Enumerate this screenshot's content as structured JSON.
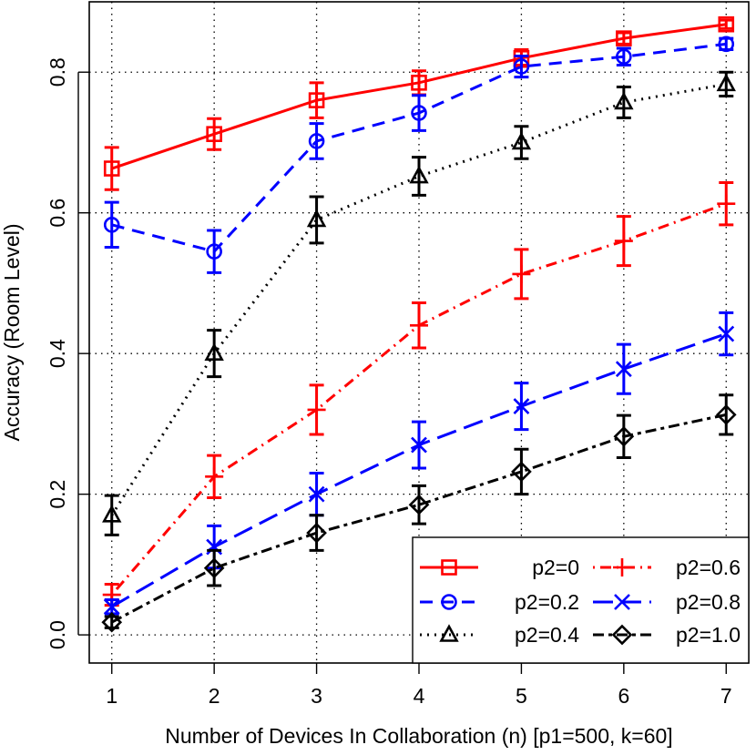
{
  "chart_data": {
    "type": "line",
    "title": "",
    "xlabel": "Number of Devices In Collaboration (n) [p1=500, k=60]",
    "ylabel": "Accuracy (Room Level)",
    "x": [
      1,
      2,
      3,
      4,
      5,
      6,
      7
    ],
    "x_ticks": [
      "1",
      "2",
      "3",
      "4",
      "5",
      "6",
      "7"
    ],
    "y_ticks": [
      "0.0",
      "0.2",
      "0.4",
      "0.6",
      "0.8"
    ],
    "y_tick_values": [
      0.0,
      0.2,
      0.4,
      0.6,
      0.8
    ],
    "xlim": [
      0.78,
      7.22
    ],
    "ylim": [
      -0.04,
      0.9
    ],
    "grid": true,
    "legend_position": "bottom-right",
    "series": [
      {
        "name": "p2=0",
        "color": "#ff0000",
        "marker": "square",
        "dash": "solid",
        "values": [
          0.663,
          0.712,
          0.76,
          0.785,
          0.82,
          0.848,
          0.868
        ],
        "errors": [
          0.03,
          0.022,
          0.025,
          0.017,
          0.012,
          0.008,
          0.006
        ]
      },
      {
        "name": "p2=0.2",
        "color": "#0000ff",
        "marker": "circle",
        "dash": "dashed",
        "values": [
          0.583,
          0.545,
          0.702,
          0.742,
          0.808,
          0.822,
          0.84
        ],
        "errors": [
          0.032,
          0.03,
          0.025,
          0.025,
          0.015,
          0.012,
          0.008
        ]
      },
      {
        "name": "p2=0.4",
        "color": "#000000",
        "marker": "triangle",
        "dash": "dotted",
        "values": [
          0.17,
          0.4,
          0.59,
          0.652,
          0.7,
          0.757,
          0.783
        ],
        "errors": [
          0.028,
          0.033,
          0.033,
          0.027,
          0.023,
          0.022,
          0.017
        ]
      },
      {
        "name": "p2=0.6",
        "color": "#ff0000",
        "marker": "plus",
        "dash": "dotdash",
        "values": [
          0.057,
          0.225,
          0.32,
          0.44,
          0.513,
          0.56,
          0.613
        ],
        "errors": [
          0.015,
          0.03,
          0.035,
          0.032,
          0.035,
          0.035,
          0.03
        ]
      },
      {
        "name": "p2=0.8",
        "color": "#0000ff",
        "marker": "cross",
        "dash": "longdash",
        "values": [
          0.04,
          0.125,
          0.2,
          0.27,
          0.325,
          0.378,
          0.428
        ],
        "errors": [
          0.01,
          0.03,
          0.03,
          0.033,
          0.033,
          0.035,
          0.03
        ]
      },
      {
        "name": "p2=1.0",
        "color": "#000000",
        "marker": "diamond",
        "dash": "twodash",
        "values": [
          0.018,
          0.095,
          0.145,
          0.185,
          0.232,
          0.282,
          0.313
        ],
        "errors": [
          0.008,
          0.025,
          0.025,
          0.027,
          0.032,
          0.03,
          0.028
        ]
      }
    ]
  }
}
